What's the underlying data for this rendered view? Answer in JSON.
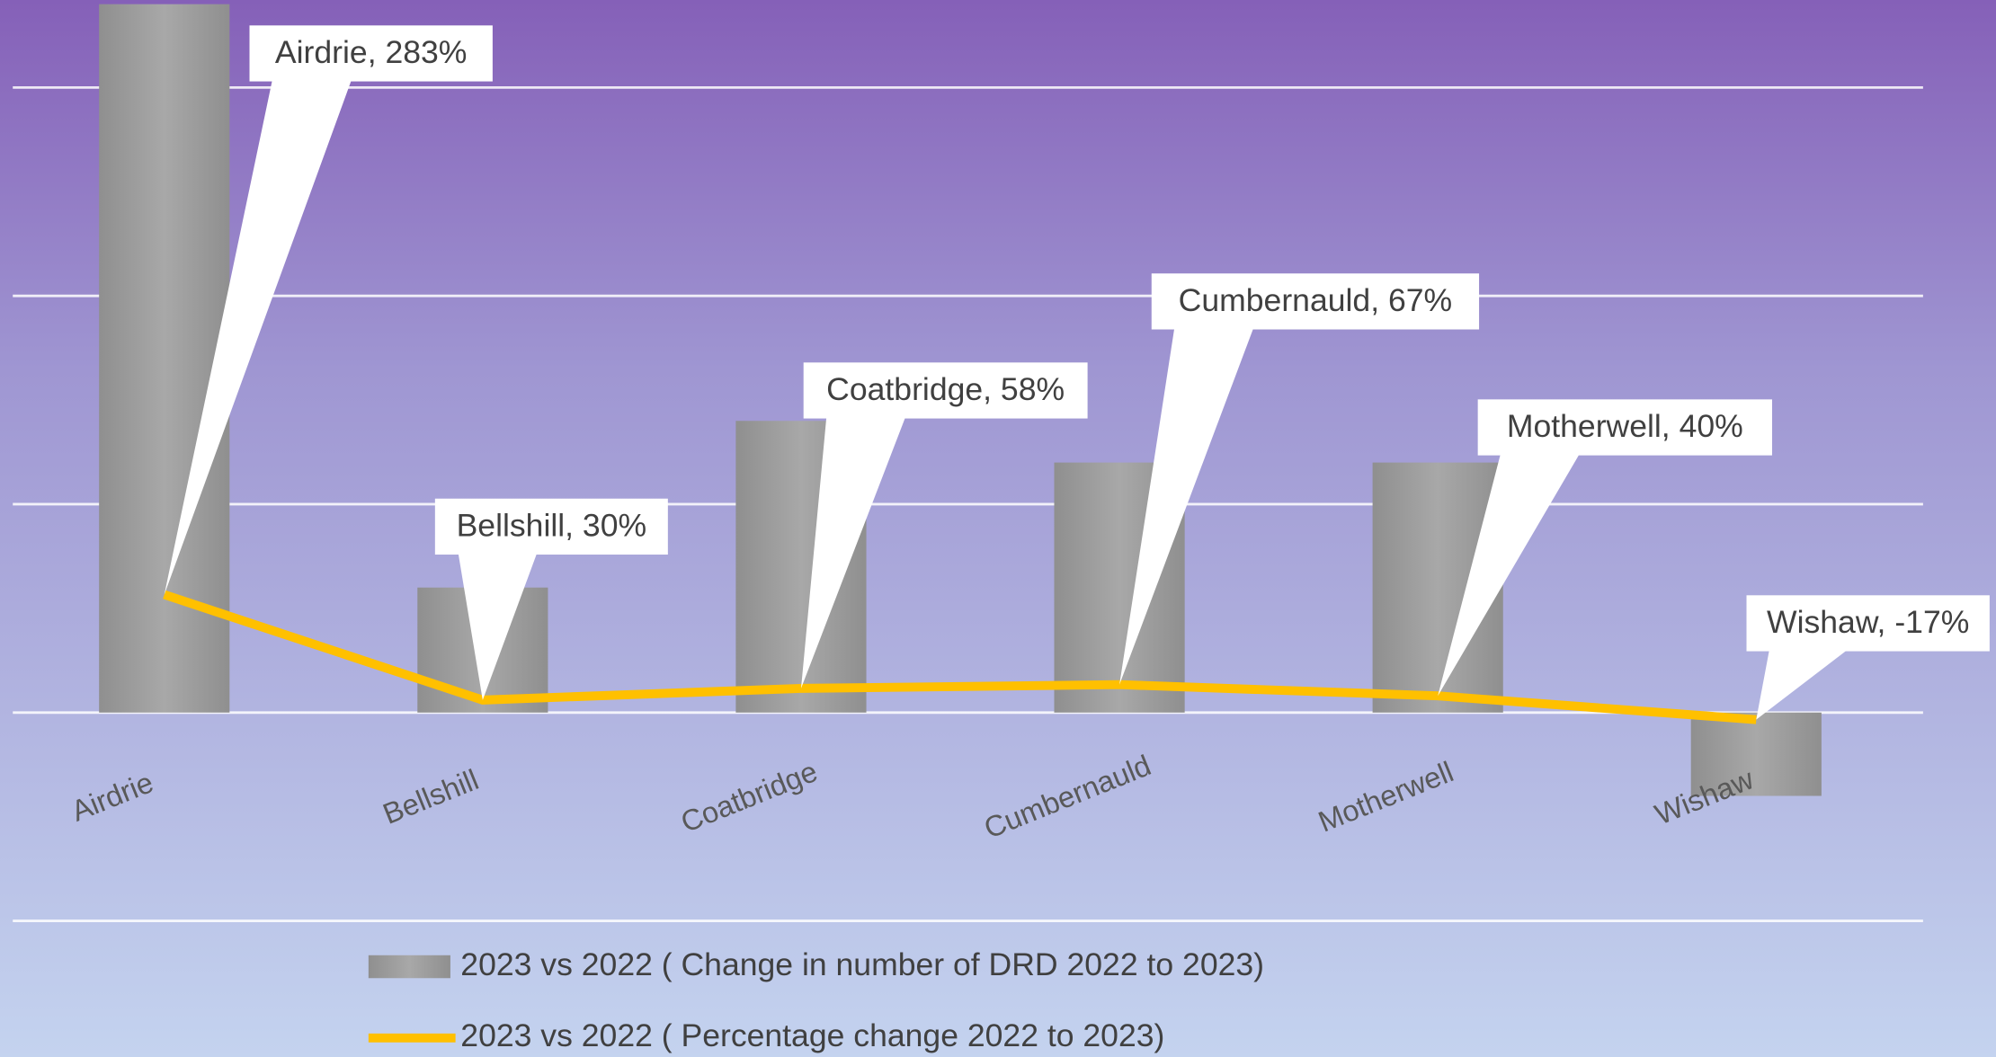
{
  "chart_data": {
    "type": "bar-line",
    "categories": [
      "Airdrie",
      "Bellshill",
      "Coatbridge",
      "Cumbernauld",
      "Motherwell",
      "Wishaw"
    ],
    "series": [
      {
        "name": "2023 vs 2022 ( Change in number of DRD 2022 to 2023)",
        "type": "bar",
        "color": "#9e9e9e",
        "values": [
          3.4,
          0.6,
          1.4,
          1.2,
          1.2,
          -0.4
        ]
      },
      {
        "name": "2023 vs 2022 ( Percentage change 2022 to 2023)",
        "type": "line",
        "color": "#ffc000",
        "axis": "y2",
        "values": [
          283,
          30,
          58,
          67,
          40,
          -17
        ],
        "value_labels": [
          "Airdrie, 283%",
          "Bellshill, 30%",
          "Coatbridge, 58%",
          "Cumbernauld, 67%",
          "Motherwell, 40%",
          "Wishaw, -17%"
        ]
      }
    ],
    "ylim": [
      -1,
      3.42
    ],
    "ygrid": [
      -1,
      0,
      1,
      2,
      3
    ],
    "y2lim": [
      -500,
      1710
    ],
    "grid": true,
    "legend": "bottom"
  }
}
